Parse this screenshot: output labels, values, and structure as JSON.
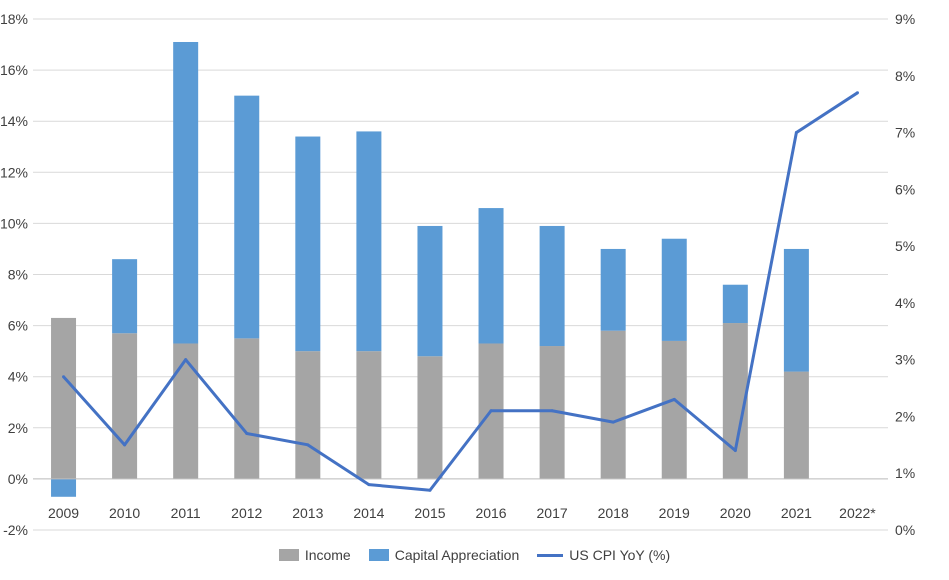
{
  "chart_data": {
    "type": "bar",
    "stacked": true,
    "categories": [
      "2009",
      "2010",
      "2011",
      "2012",
      "2013",
      "2014",
      "2015",
      "2016",
      "2017",
      "2018",
      "2019",
      "2020",
      "2021",
      "2022*"
    ],
    "series": [
      {
        "name": "Income",
        "type": "bar",
        "axis": "left",
        "color": "#a5a5a5",
        "values": [
          6.3,
          5.7,
          5.3,
          5.5,
          5.0,
          5.0,
          4.8,
          5.3,
          5.2,
          5.8,
          5.4,
          6.1,
          4.2,
          null
        ]
      },
      {
        "name": "Capital Appreciation",
        "type": "bar",
        "axis": "left",
        "color": "#5b9bd5",
        "values": [
          -0.7,
          2.9,
          11.8,
          9.5,
          8.4,
          8.6,
          5.1,
          5.3,
          4.7,
          3.2,
          4.0,
          1.5,
          4.8,
          null
        ]
      },
      {
        "name": "US CPI YoY (%)",
        "type": "line",
        "axis": "right",
        "color": "#4472c4",
        "values": [
          2.7,
          1.5,
          3.0,
          1.7,
          1.5,
          0.8,
          0.7,
          2.1,
          2.1,
          1.9,
          2.3,
          1.4,
          7.0,
          7.7
        ]
      }
    ],
    "y_left": {
      "min": -2,
      "max": 18,
      "step": 2,
      "ticks": [
        "-2%",
        "0%",
        "2%",
        "4%",
        "6%",
        "8%",
        "10%",
        "12%",
        "14%",
        "16%",
        "18%"
      ]
    },
    "y_right": {
      "min": 0,
      "max": 9,
      "step": 1,
      "ticks": [
        "0%",
        "1%",
        "2%",
        "3%",
        "4%",
        "5%",
        "6%",
        "7%",
        "8%",
        "9%"
      ]
    },
    "grid": true,
    "legend_position": "bottom"
  },
  "legend": {
    "income": "Income",
    "capital": "Capital Appreciation",
    "cpi": "US CPI YoY (%)"
  }
}
